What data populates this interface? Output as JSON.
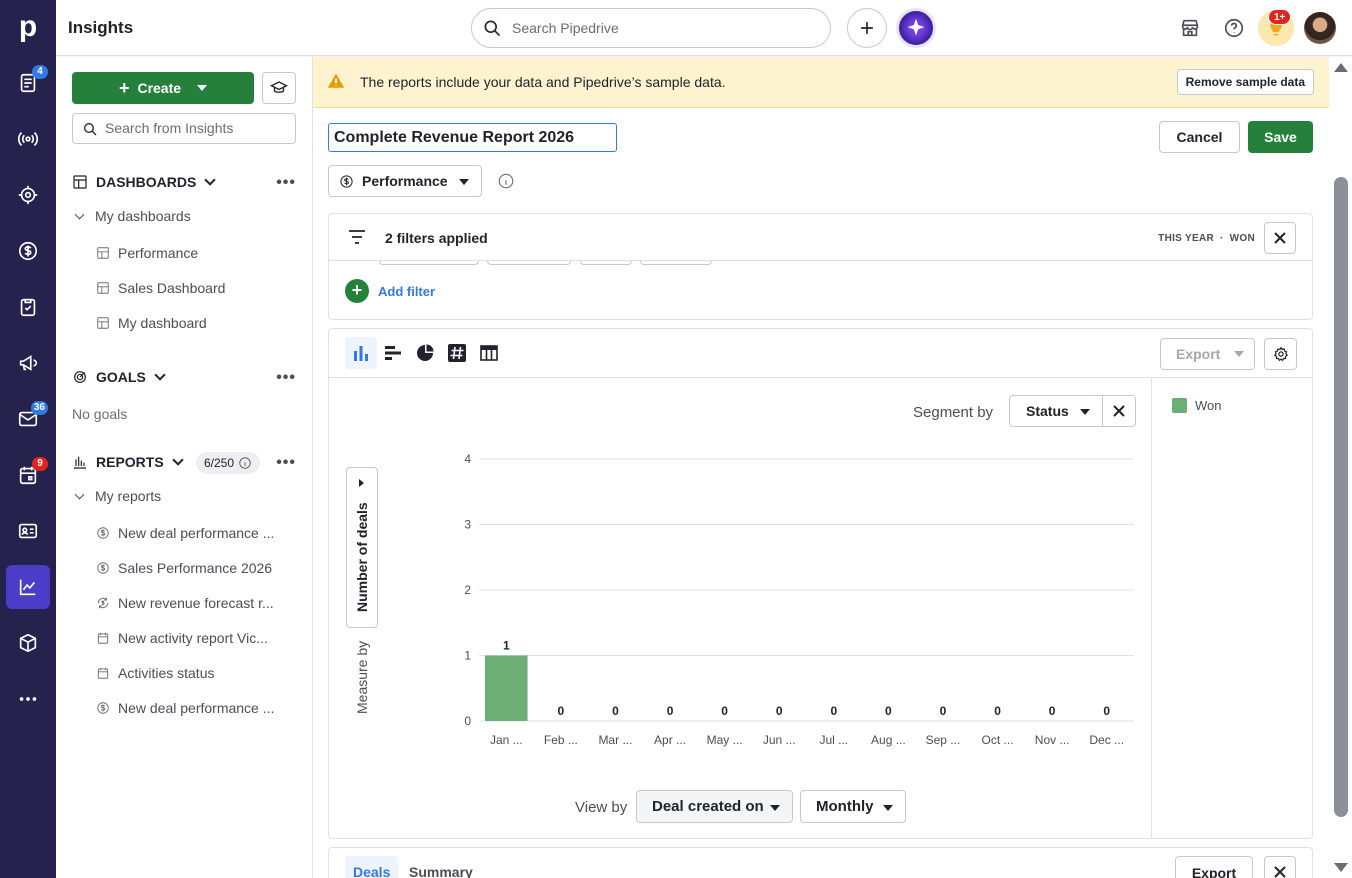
{
  "app": {
    "title": "Insights"
  },
  "rail": {
    "logo": "p",
    "items": [
      {
        "icon": "deals-list-icon",
        "badge": "4"
      },
      {
        "icon": "leads-broadcast-icon"
      },
      {
        "icon": "target-icon"
      },
      {
        "icon": "dollar-icon"
      },
      {
        "icon": "clipboard-check-icon"
      },
      {
        "icon": "megaphone-icon"
      },
      {
        "icon": "mail-icon",
        "badge": "36"
      },
      {
        "icon": "calendar-icon",
        "badge": "9"
      },
      {
        "icon": "contacts-card-icon"
      },
      {
        "icon": "insights-chart-icon",
        "active": true
      },
      {
        "icon": "product-box-icon"
      },
      {
        "icon": "more-icon"
      }
    ]
  },
  "topbar": {
    "search_placeholder": "Search Pipedrive",
    "notifications_badge": "1+"
  },
  "sidebar": {
    "create_label": "Create",
    "search_placeholder": "Search from Insights",
    "dashboards_heading": "DASHBOARDS",
    "my_dashboards_label": "My dashboards",
    "dashboards": [
      "Performance",
      "Sales Dashboard",
      "My dashboard"
    ],
    "goals_heading": "GOALS",
    "no_goals": "No goals",
    "reports_heading": "REPORTS",
    "reports_count": "6/250",
    "my_reports_label": "My reports",
    "reports": [
      {
        "label": "New deal performance ...",
        "icon": "dollar-icon"
      },
      {
        "label": "Sales Performance 2026",
        "icon": "dollar-icon"
      },
      {
        "label": "New revenue forecast r...",
        "icon": "forecast-dollar-icon"
      },
      {
        "label": "New activity report Vic...",
        "icon": "calendar-icon"
      },
      {
        "label": "Activities status",
        "icon": "calendar-icon"
      },
      {
        "label": "New deal performance ...",
        "icon": "dollar-icon"
      }
    ]
  },
  "banner": {
    "message": "The reports include your data and Pipedrive’s sample data.",
    "remove_label": "Remove sample data"
  },
  "report": {
    "name": "Complete Revenue Report 2026",
    "cancel_label": "Cancel",
    "save_label": "Save",
    "type_label": "Performance"
  },
  "filters": {
    "summary": "2 filters applied",
    "tag_period": "THIS YEAR",
    "tag_separator": "·",
    "tag_status": "WON",
    "add_filter_label": "Add filter"
  },
  "chart_toolbar": {
    "export_label": "Export"
  },
  "segment": {
    "label": "Segment by",
    "value": "Status"
  },
  "measure": {
    "label": "Measure by",
    "value": "Number of deals"
  },
  "view": {
    "label": "View by",
    "by_value": "Deal created on",
    "period_value": "Monthly"
  },
  "legend": [
    {
      "name": "Won",
      "color": "#6cae75"
    }
  ],
  "chart_data": {
    "type": "bar",
    "categories": [
      "Jan ...",
      "Feb ...",
      "Mar ...",
      "Apr ...",
      "May ...",
      "Jun ...",
      "Jul ...",
      "Aug ...",
      "Sep ...",
      "Oct ...",
      "Nov ...",
      "Dec ..."
    ],
    "series": [
      {
        "name": "Won",
        "values": [
          1,
          0,
          0,
          0,
          0,
          0,
          0,
          0,
          0,
          0,
          0,
          0
        ],
        "color": "#6cae75"
      }
    ],
    "ylabel": "Number of deals",
    "xlabel": "",
    "ylim": [
      0,
      4
    ],
    "yticks": [
      0,
      1,
      2,
      3,
      4
    ],
    "grid": true
  },
  "bottom": {
    "tabs": [
      "Deals",
      "Summary"
    ],
    "export_label": "Export"
  }
}
